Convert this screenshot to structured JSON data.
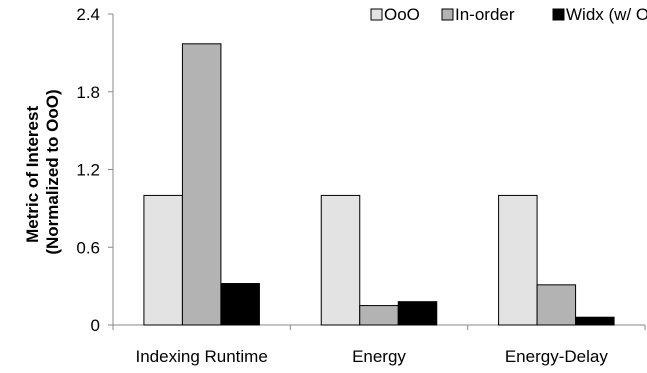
{
  "chart_data": {
    "type": "bar",
    "title": "",
    "xlabel": "",
    "ylabel_line1": "Metric of Interest",
    "ylabel_line2": "(Normalized to OoO)",
    "ylim": [
      0,
      2.4
    ],
    "yticks": [
      "0",
      "0.6",
      "1.2",
      "1.8",
      "2.4"
    ],
    "ytick_values": [
      0,
      0.6,
      1.2,
      1.8,
      2.4
    ],
    "categories": [
      "Indexing Runtime",
      "Energy",
      "Energy-Delay"
    ],
    "series": [
      {
        "name": "OoO",
        "values": [
          1.0,
          1.0,
          1.0
        ],
        "color": "#e3e3e3"
      },
      {
        "name": "In-order",
        "values": [
          2.17,
          0.15,
          0.31
        ],
        "color": "#b3b3b3"
      },
      {
        "name": "Widx (w/ OoO)",
        "values": [
          0.32,
          0.18,
          0.06
        ],
        "color": "#000000"
      }
    ],
    "legend_position": "top",
    "grid": false
  }
}
